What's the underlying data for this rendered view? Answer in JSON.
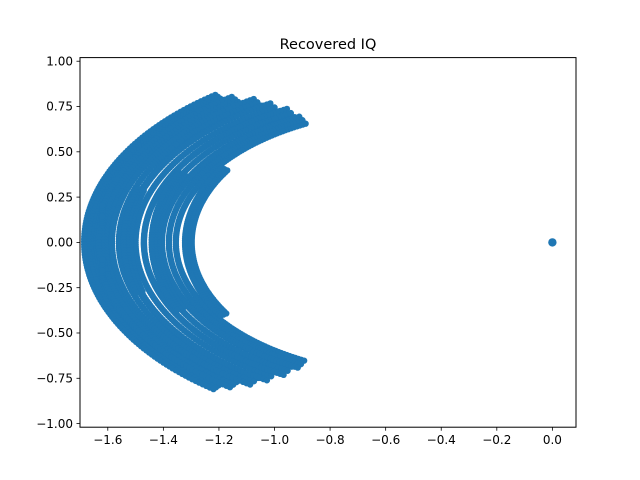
{
  "chart_data": {
    "type": "scatter",
    "title": "Recovered IQ",
    "xlabel": "",
    "ylabel": "",
    "xlim": [
      -1.7,
      0.085
    ],
    "ylim": [
      -1.02,
      1.02
    ],
    "xticks": [
      -1.6,
      -1.4,
      -1.2,
      -1.0,
      -0.8,
      -0.6,
      -0.4,
      -0.2,
      0.0
    ],
    "xtick_labels": [
      "−1.6",
      "−1.4",
      "−1.2",
      "−1.0",
      "−0.8",
      "−0.6",
      "−0.4",
      "−0.2",
      "0.0"
    ],
    "yticks": [
      -1.0,
      -0.75,
      -0.5,
      -0.25,
      0.0,
      0.25,
      0.5,
      0.75,
      1.0
    ],
    "ytick_labels": [
      "−1.00",
      "−0.75",
      "−0.50",
      "−0.25",
      "0.00",
      "0.25",
      "0.50",
      "0.75",
      "1.00"
    ],
    "grid": false,
    "color": "#1f77b4",
    "clusters": [
      {
        "center_x": -1.0,
        "radius": 0.62,
        "theta_max_deg": 48,
        "thickness": 0.025
      },
      {
        "center_x": -1.0,
        "radius": 0.58,
        "theta_max_deg": 46,
        "thickness": 0.05
      },
      {
        "center_x": -1.0,
        "radius": 0.53,
        "theta_max_deg": 44,
        "thickness": 0.06
      },
      {
        "center_x": -1.0,
        "radius": 0.48,
        "theta_max_deg": 42,
        "thickness": 0.07
      },
      {
        "center_x": -1.0,
        "radius": 0.43,
        "theta_max_deg": 40,
        "thickness": 0.08
      },
      {
        "center_x": -1.0,
        "radius": 0.36,
        "theta_max_deg": 38,
        "thickness": 0.03
      },
      {
        "center_x": -1.0,
        "radius": 0.3,
        "theta_max_deg": 32,
        "thickness": 0.025
      },
      {
        "center_x": -1.0,
        "radius": 0.2,
        "theta_max_deg": 28,
        "thickness": 0.02
      },
      {
        "center_x": -1.0,
        "radius": 0.13,
        "theta_max_deg": 22,
        "thickness": 0.015
      }
    ],
    "outer_arc": {
      "center_x": 0.0,
      "radius": 1.17,
      "theta_min_deg": 127,
      "theta_max_deg": 233
    },
    "left_dots": [
      {
        "x": -1.62,
        "y": 0.18
      },
      {
        "x": -1.62,
        "y": 0.12
      },
      {
        "x": -1.62,
        "y": -0.12
      },
      {
        "x": -1.62,
        "y": -0.18
      }
    ],
    "isolated_point": {
      "x": 0.0,
      "y": 0.0
    }
  }
}
